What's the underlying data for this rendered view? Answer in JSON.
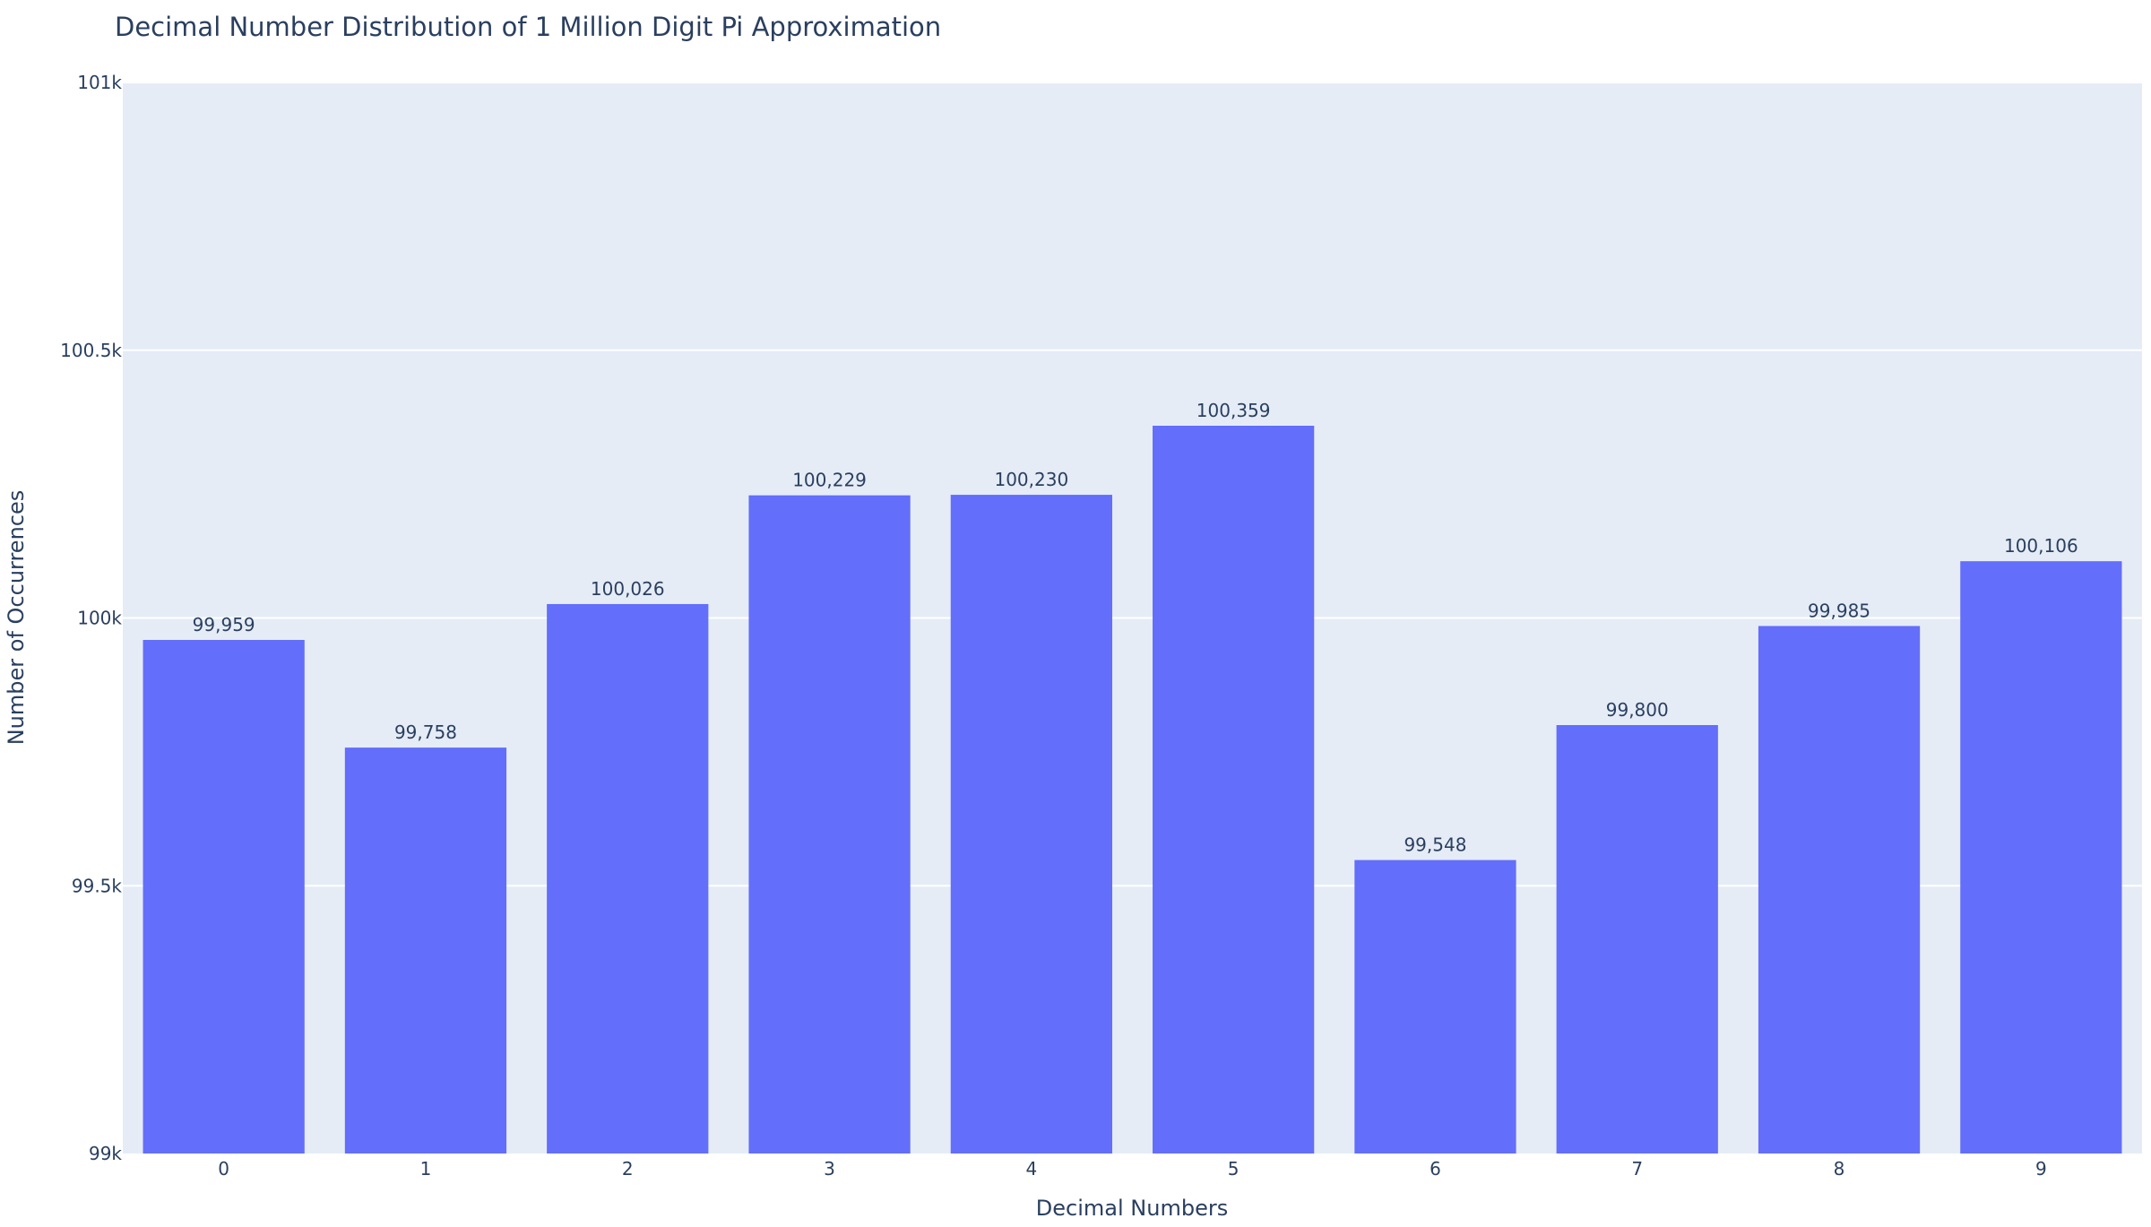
{
  "chart_data": {
    "type": "bar",
    "title": "Decimal Number Distribution of 1 Million Digit Pi Approximation",
    "xlabel": "Decimal Numbers",
    "ylabel": "Number of Occurrences",
    "categories": [
      "0",
      "1",
      "2",
      "3",
      "4",
      "5",
      "6",
      "7",
      "8",
      "9"
    ],
    "values": [
      99959,
      99758,
      100026,
      100229,
      100230,
      100359,
      99548,
      99800,
      99985,
      100106
    ],
    "value_labels": [
      "99,959",
      "99,758",
      "100,026",
      "100,229",
      "100,230",
      "100,359",
      "99,548",
      "99,800",
      "99,985",
      "100,106"
    ],
    "ylim": [
      99000,
      101000
    ],
    "yticks": [
      99000,
      99500,
      100000,
      100500,
      101000
    ],
    "ytick_labels": [
      "99k",
      "99.5k",
      "100k",
      "100.5k",
      "101k"
    ],
    "grid": true,
    "legend": "none",
    "colors": {
      "bar": "#636efa",
      "plot_background": "#e5ecf6",
      "gridline": "#ffffff",
      "text": "#2a3f5f"
    }
  }
}
